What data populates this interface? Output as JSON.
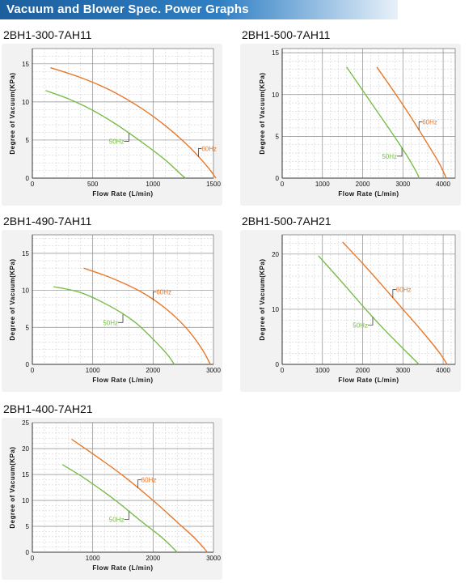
{
  "header": {
    "title": "Vacuum and Blower Spec. Power Graphs"
  },
  "colors": {
    "c60": "#e8782a",
    "c50": "#79bd4a",
    "grid": "#9a9a9a",
    "panel": "#f2f2f2"
  },
  "chart_data": [
    {
      "type": "line",
      "title": "2BH1-300-7AH11",
      "xlabel": "Flow Rate (L/min)",
      "ylabel": "Degree of Vacuum(KPa)",
      "xlim": [
        0,
        1500
      ],
      "ylim": [
        0,
        17
      ],
      "xticks": [
        0,
        500,
        1000,
        1500
      ],
      "yticks": [
        0,
        5,
        10,
        15
      ],
      "series": [
        {
          "name": "60Hz",
          "color": "#e8782a",
          "points": [
            [
              150,
              14.5
            ],
            [
              400,
              13.2
            ],
            [
              650,
              11.5
            ],
            [
              900,
              9.2
            ],
            [
              1100,
              6.9
            ],
            [
              1300,
              4.1
            ],
            [
              1450,
              1.5
            ],
            [
              1520,
              0
            ]
          ]
        },
        {
          "name": "50Hz",
          "color": "#79bd4a",
          "points": [
            [
              110,
              11.5
            ],
            [
              300,
              10.4
            ],
            [
              500,
              8.9
            ],
            [
              700,
              7.0
            ],
            [
              900,
              4.8
            ],
            [
              1100,
              2.4
            ],
            [
              1230,
              0.5
            ],
            [
              1270,
              0
            ]
          ]
        }
      ],
      "labels": {
        "c60": "60Hz",
        "c50": "50Hz"
      }
    },
    {
      "type": "line",
      "title": "2BH1-500-7AH11",
      "xlabel": "Flow Rate (L/min)",
      "ylabel": "Degree of Vacuum(KPa)",
      "xlim": [
        0,
        4300
      ],
      "ylim": [
        0,
        15.5
      ],
      "xticks": [
        0,
        1000,
        2000,
        3000,
        4000
      ],
      "yticks": [
        0,
        5,
        10,
        15
      ],
      "series": [
        {
          "name": "60Hz",
          "color": "#e8782a",
          "points": [
            [
              2350,
              13.3
            ],
            [
              2800,
              10.2
            ],
            [
              3200,
              7.3
            ],
            [
              3600,
              4.2
            ],
            [
              3900,
              1.8
            ],
            [
              4050,
              0.3
            ],
            [
              4080,
              0
            ]
          ]
        },
        {
          "name": "50Hz",
          "color": "#79bd4a",
          "points": [
            [
              1600,
              13.3
            ],
            [
              2000,
              10.5
            ],
            [
              2400,
              7.7
            ],
            [
              2800,
              4.9
            ],
            [
              3150,
              2.3
            ],
            [
              3350,
              0.6
            ],
            [
              3400,
              0
            ]
          ]
        }
      ],
      "labels": {
        "c60": "60Hz",
        "c50": "50Hz"
      }
    },
    {
      "type": "line",
      "title": "2BH1-490-7AH11",
      "xlabel": "Flow Rate (L/min)",
      "ylabel": "Degree of Vacuum(KPa)",
      "xlim": [
        0,
        3000
      ],
      "ylim": [
        0,
        17.5
      ],
      "xticks": [
        0,
        1000,
        2000,
        3000
      ],
      "yticks": [
        0,
        5,
        10,
        15
      ],
      "series": [
        {
          "name": "60Hz",
          "color": "#e8782a",
          "points": [
            [
              850,
              13.0
            ],
            [
              1300,
              11.7
            ],
            [
              1800,
              9.8
            ],
            [
              2200,
              7.6
            ],
            [
              2550,
              4.9
            ],
            [
              2800,
              2.2
            ],
            [
              2950,
              0
            ]
          ]
        },
        {
          "name": "50Hz",
          "color": "#79bd4a",
          "points": [
            [
              350,
              10.5
            ],
            [
              800,
              9.7
            ],
            [
              1300,
              7.8
            ],
            [
              1700,
              5.7
            ],
            [
              2000,
              3.4
            ],
            [
              2250,
              1.2
            ],
            [
              2350,
              0
            ]
          ]
        }
      ],
      "labels": {
        "c60": "60Hz",
        "c50": "50Hz"
      }
    },
    {
      "type": "line",
      "title": "2BH1-500-7AH21",
      "xlabel": "Flow Rate (L/min)",
      "ylabel": "Degree of Vacuum(KPa)",
      "xlim": [
        0,
        4300
      ],
      "ylim": [
        0,
        23.5
      ],
      "xticks": [
        0,
        1000,
        2000,
        3000,
        4000
      ],
      "yticks": [
        0,
        10,
        20
      ],
      "series": [
        {
          "name": "60Hz",
          "color": "#e8782a",
          "points": [
            [
              1500,
              22.2
            ],
            [
              2000,
              18.3
            ],
            [
              2500,
              14.2
            ],
            [
              3000,
              10.0
            ],
            [
              3500,
              5.8
            ],
            [
              3900,
              2.2
            ],
            [
              4100,
              0
            ]
          ]
        },
        {
          "name": "50Hz",
          "color": "#79bd4a",
          "points": [
            [
              900,
              19.7
            ],
            [
              1500,
              14.8
            ],
            [
              2000,
              10.6
            ],
            [
              2500,
              6.6
            ],
            [
              3000,
              2.9
            ],
            [
              3400,
              0
            ]
          ]
        }
      ],
      "labels": {
        "c60": "60Hz",
        "c50": "50Hz"
      }
    },
    {
      "type": "line",
      "title": "2BH1-400-7AH21",
      "xlabel": "Flow Rate (L/min)",
      "ylabel": "Degree of Vacuum(KPa)",
      "xlim": [
        0,
        3000
      ],
      "ylim": [
        0,
        25
      ],
      "xticks": [
        0,
        1000,
        2000,
        3000
      ],
      "yticks": [
        0,
        5,
        10,
        15,
        20,
        25
      ],
      "series": [
        {
          "name": "60Hz",
          "color": "#e8782a",
          "points": [
            [
              650,
              21.8
            ],
            [
              1000,
              19.0
            ],
            [
              1500,
              14.8
            ],
            [
              2000,
              10.0
            ],
            [
              2400,
              5.8
            ],
            [
              2700,
              2.6
            ],
            [
              2900,
              0
            ]
          ]
        },
        {
          "name": "50Hz",
          "color": "#79bd4a",
          "points": [
            [
              500,
              16.9
            ],
            [
              900,
              14.0
            ],
            [
              1400,
              9.8
            ],
            [
              1800,
              6.0
            ],
            [
              2150,
              2.8
            ],
            [
              2400,
              0
            ]
          ]
        }
      ],
      "labels": {
        "c60": "60Hz",
        "c50": "50Hz"
      }
    }
  ]
}
